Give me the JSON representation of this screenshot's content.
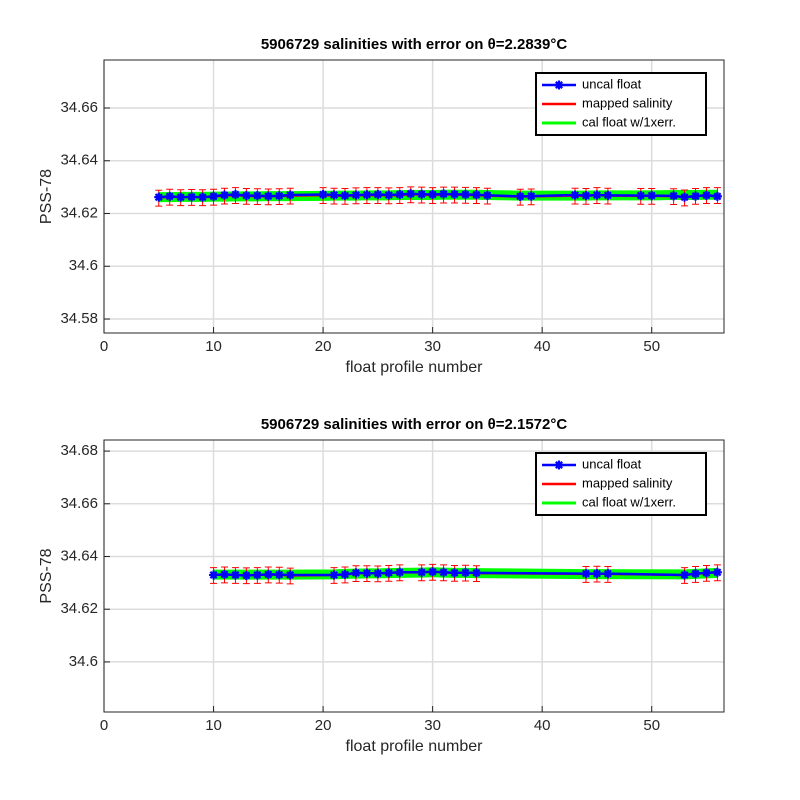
{
  "chart_data": [
    {
      "type": "errorline",
      "title": "5906729 salinities with error on θ=2.2839°C",
      "xlabel": "float profile number",
      "ylabel": "PSS-78",
      "x": [
        5,
        6,
        7,
        8,
        9,
        10,
        11,
        12,
        13,
        14,
        15,
        16,
        17,
        20,
        21,
        22,
        23,
        24,
        25,
        26,
        27,
        28,
        29,
        30,
        31,
        32,
        33,
        34,
        35,
        38,
        39,
        43,
        44,
        45,
        46,
        49,
        50,
        52,
        53,
        54,
        55,
        56
      ],
      "series": [
        {
          "name": "cal float w/1xerr.",
          "color": "#00ff00",
          "values": [
            34.6262,
            34.6262,
            34.6263,
            34.6263,
            34.6263,
            34.6264,
            34.6264,
            34.6265,
            34.6265,
            34.6265,
            34.6266,
            34.6266,
            34.6266,
            34.6267,
            34.6268,
            34.6268,
            34.6268,
            34.6269,
            34.6269,
            34.6269,
            34.627,
            34.627,
            34.627,
            34.627,
            34.6271,
            34.6271,
            34.6271,
            34.6271,
            34.627,
            34.6268,
            34.6268,
            34.6268,
            34.6268,
            34.6269,
            34.6269,
            34.6269,
            34.6269,
            34.627,
            34.627,
            34.627,
            34.6271,
            34.6271
          ]
        },
        {
          "name": "mapped salinity",
          "color": "#ff0000",
          "values": [
            34.6258,
            34.6262,
            34.626,
            34.6261,
            34.626,
            34.6262,
            34.6266,
            34.6268,
            34.6265,
            34.6264,
            34.6263,
            34.6264,
            34.6266,
            34.6268,
            34.6266,
            34.6265,
            34.6267,
            34.6268,
            34.6268,
            34.6267,
            34.6268,
            34.6271,
            34.627,
            34.6268,
            34.627,
            34.627,
            34.6269,
            34.6268,
            34.6266,
            34.6262,
            34.6263,
            34.6266,
            34.6265,
            34.6268,
            34.6266,
            34.6265,
            34.6265,
            34.6264,
            34.6259,
            34.6265,
            34.6268,
            34.6268
          ],
          "errors": [
            0.003,
            0.003,
            0.003,
            0.003,
            0.003,
            0.003,
            0.003,
            0.003,
            0.003,
            0.003,
            0.003,
            0.003,
            0.003,
            0.003,
            0.003,
            0.003,
            0.003,
            0.003,
            0.003,
            0.003,
            0.003,
            0.003,
            0.003,
            0.003,
            0.003,
            0.003,
            0.003,
            0.003,
            0.003,
            0.003,
            0.003,
            0.003,
            0.003,
            0.003,
            0.003,
            0.003,
            0.003,
            0.003,
            0.003,
            0.003,
            0.003,
            0.003
          ]
        },
        {
          "name": "uncal float",
          "color": "#0000ff",
          "values": [
            34.6262,
            34.6265,
            34.6262,
            34.6263,
            34.6262,
            34.6265,
            34.627,
            34.6272,
            34.6268,
            34.6268,
            34.6266,
            34.6267,
            34.627,
            34.6272,
            34.627,
            34.6268,
            34.627,
            34.6271,
            34.6272,
            34.627,
            34.6272,
            34.6275,
            34.6273,
            34.6272,
            34.6274,
            34.6273,
            34.6272,
            34.6271,
            34.6269,
            34.6265,
            34.6266,
            34.627,
            34.6268,
            34.627,
            34.6269,
            34.6268,
            34.6268,
            34.6267,
            34.6262,
            34.6266,
            34.6269,
            34.6265
          ]
        }
      ],
      "xlim": [
        0,
        56.6
      ],
      "xticks": [
        0,
        10,
        20,
        30,
        40,
        50
      ],
      "ylim": [
        34.5747,
        34.6782
      ],
      "yticks": [
        34.58,
        34.6,
        34.62,
        34.64,
        34.66
      ],
      "grid": true,
      "legend": "upper right"
    },
    {
      "type": "errorline",
      "title": "5906729 salinities with error on θ=2.1572°C",
      "xlabel": "float profile number",
      "ylabel": "PSS-78",
      "x": [
        10,
        11,
        12,
        13,
        14,
        15,
        16,
        17,
        21,
        22,
        23,
        24,
        25,
        26,
        27,
        29,
        30,
        31,
        32,
        33,
        34,
        44,
        45,
        46,
        53,
        54,
        55,
        56
      ],
      "series": [
        {
          "name": "cal float w/1xerr.",
          "color": "#00ff00",
          "values": [
            34.6331,
            34.6331,
            34.6331,
            34.6331,
            34.6331,
            34.6331,
            34.6331,
            34.6331,
            34.6332,
            34.6334,
            34.6335,
            34.6336,
            34.6336,
            34.6337,
            34.6338,
            34.6339,
            34.634,
            34.6339,
            34.6338,
            34.6338,
            34.6337,
            34.6333,
            34.6333,
            34.6333,
            34.6332,
            34.6334,
            34.6336,
            34.6338
          ]
        },
        {
          "name": "mapped salinity",
          "color": "#ff0000",
          "values": [
            34.6328,
            34.633,
            34.6328,
            34.6327,
            34.6328,
            34.633,
            34.6329,
            34.6326,
            34.6328,
            34.633,
            34.6335,
            34.6335,
            34.6334,
            34.6336,
            34.6338,
            34.6338,
            34.634,
            34.6338,
            34.6336,
            34.6337,
            34.6335,
            34.6332,
            34.6333,
            34.6332,
            34.6328,
            34.6332,
            34.6336,
            34.6338
          ],
          "errors": [
            0.003,
            0.003,
            0.003,
            0.003,
            0.003,
            0.003,
            0.003,
            0.003,
            0.003,
            0.003,
            0.003,
            0.003,
            0.003,
            0.003,
            0.003,
            0.003,
            0.003,
            0.003,
            0.003,
            0.003,
            0.003,
            0.003,
            0.003,
            0.003,
            0.003,
            0.003,
            0.003,
            0.003
          ]
        },
        {
          "name": "uncal float",
          "color": "#0000ff",
          "values": [
            34.633,
            34.6332,
            34.633,
            34.6328,
            34.633,
            34.6332,
            34.6331,
            34.633,
            34.633,
            34.6332,
            34.6338,
            34.6337,
            34.6336,
            34.6338,
            34.634,
            34.634,
            34.6342,
            34.634,
            34.6338,
            34.6339,
            34.6338,
            34.6335,
            34.6335,
            34.6335,
            34.633,
            34.6335,
            34.6338,
            34.634
          ]
        }
      ],
      "xlim": [
        0,
        56.6
      ],
      "xticks": [
        0,
        10,
        20,
        30,
        40,
        50
      ],
      "ylim": [
        34.581,
        34.6842
      ],
      "yticks": [
        34.6,
        34.62,
        34.64,
        34.66,
        34.68
      ],
      "grid": true,
      "legend": "upper right"
    }
  ]
}
